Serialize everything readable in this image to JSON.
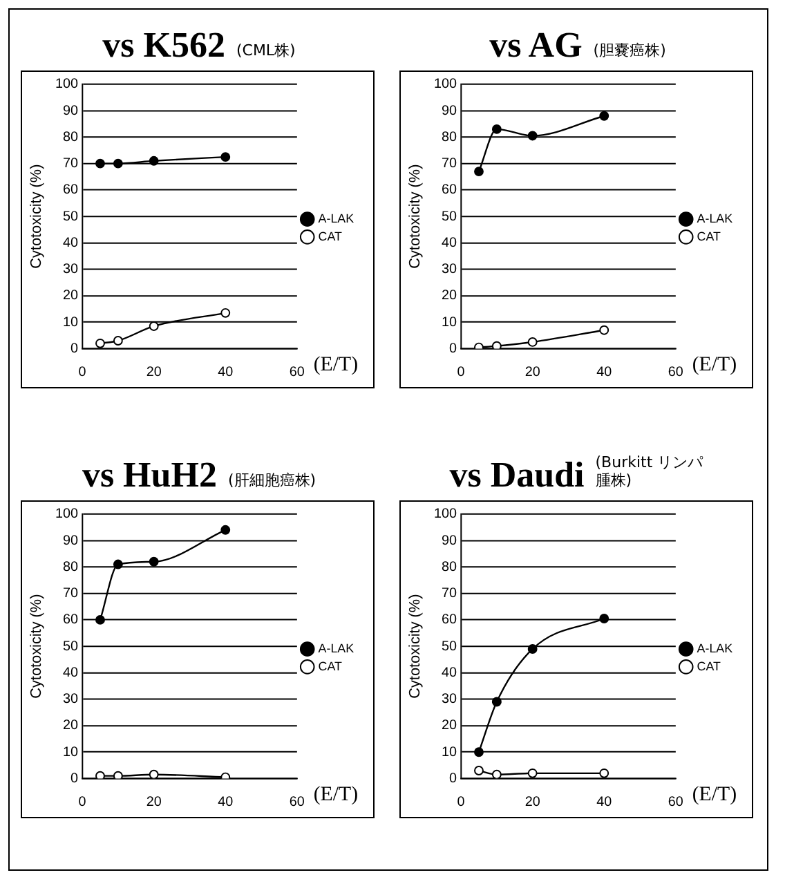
{
  "chart_data": [
    {
      "type": "line",
      "title": "vs K562",
      "subtitle": "(CML株)",
      "xlabel": "(E/T)",
      "ylabel": "Cytotoxicity (%)",
      "xlim": [
        0,
        60
      ],
      "xticks": [
        0,
        20,
        40,
        60
      ],
      "ylim": [
        0,
        100
      ],
      "yticks": [
        0,
        10,
        20,
        30,
        40,
        50,
        60,
        70,
        80,
        90,
        100
      ],
      "grid": "y",
      "legend": "right",
      "marker": "circle",
      "line_style": "solid",
      "x": [
        5,
        10,
        20,
        40
      ],
      "series": [
        {
          "name": "A-LAK",
          "color": "#000000",
          "values": [
            70,
            70,
            71,
            72.5
          ]
        },
        {
          "name": "CAT",
          "color": "#000000",
          "values": [
            2,
            3,
            8.5,
            13.5
          ]
        }
      ]
    },
    {
      "type": "line",
      "title": "vs AG",
      "subtitle": "(胆嚢癌株)",
      "xlabel": "(E/T)",
      "ylabel": "Cytotoxicity (%)",
      "xlim": [
        0,
        60
      ],
      "xticks": [
        0,
        20,
        40,
        60
      ],
      "ylim": [
        0,
        100
      ],
      "yticks": [
        0,
        10,
        20,
        30,
        40,
        50,
        60,
        70,
        80,
        90,
        100
      ],
      "grid": "y",
      "legend": "right",
      "marker": "circle",
      "line_style": "solid",
      "x": [
        5,
        10,
        20,
        40
      ],
      "series": [
        {
          "name": "A-LAK",
          "color": "#000000",
          "values": [
            67,
            83,
            80.5,
            88
          ]
        },
        {
          "name": "CAT",
          "color": "#000000",
          "values": [
            0.5,
            1,
            2.5,
            7
          ]
        }
      ]
    },
    {
      "type": "line",
      "title": "vs HuH2",
      "subtitle": "(肝細胞癌株)",
      "xlabel": "(E/T)",
      "ylabel": "Cytotoxicity (%)",
      "xlim": [
        0,
        60
      ],
      "xticks": [
        0,
        20,
        40,
        60
      ],
      "ylim": [
        0,
        100
      ],
      "yticks": [
        0,
        10,
        20,
        30,
        40,
        50,
        60,
        70,
        80,
        90,
        100
      ],
      "grid": "y",
      "legend": "right",
      "marker": "circle",
      "line_style": "solid",
      "x": [
        5,
        10,
        20,
        40
      ],
      "series": [
        {
          "name": "A-LAK",
          "color": "#000000",
          "values": [
            60,
            81,
            82,
            94
          ]
        },
        {
          "name": "CAT",
          "color": "#000000",
          "values": [
            1,
            1,
            1.5,
            0.5
          ]
        }
      ]
    },
    {
      "type": "line",
      "title": "vs Daudi",
      "subtitle": "(Burkitt リンパ腫株)",
      "xlabel": "(E/T)",
      "ylabel": "Cytotoxicity (%)",
      "xlim": [
        0,
        60
      ],
      "xticks": [
        0,
        20,
        40,
        60
      ],
      "ylim": [
        0,
        100
      ],
      "yticks": [
        0,
        10,
        20,
        30,
        40,
        50,
        60,
        70,
        80,
        90,
        100
      ],
      "grid": "y",
      "legend": "right",
      "marker": "circle",
      "line_style": "solid",
      "x": [
        5,
        10,
        20,
        40
      ],
      "series": [
        {
          "name": "A-LAK",
          "color": "#000000",
          "values": [
            10,
            29,
            49,
            60.5
          ]
        },
        {
          "name": "CAT",
          "color": "#000000",
          "values": [
            3,
            1.5,
            2,
            2
          ]
        }
      ]
    }
  ]
}
